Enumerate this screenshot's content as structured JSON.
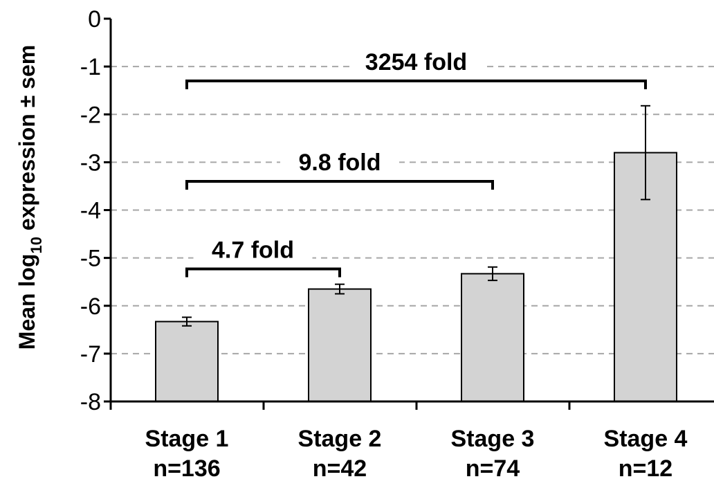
{
  "chart_data": {
    "type": "bar",
    "ylabel_main": "Mean log",
    "ylabel_sub": "10",
    "ylabel_rest": " expression ± sem",
    "ylim": [
      -8,
      0
    ],
    "yticks": [
      0,
      -1,
      -2,
      -3,
      -4,
      -5,
      -6,
      -7,
      -8
    ],
    "grid": true,
    "categories": [
      "Stage 1",
      "Stage 2",
      "Stage 3",
      "Stage 4"
    ],
    "category_n": [
      "n=136",
      "n=42",
      "n=74",
      "n=12"
    ],
    "values": [
      -6.33,
      -5.65,
      -5.33,
      -2.8
    ],
    "errors": [
      0.09,
      0.1,
      0.14,
      0.98
    ],
    "annotations": [
      {
        "label": "4.7 fold",
        "from": 0,
        "to": 1,
        "y": -5.23
      },
      {
        "label": "9.8 fold",
        "from": 0,
        "to": 2,
        "y": -3.4
      },
      {
        "label": "3254 fold",
        "from": 0,
        "to": 3,
        "y": -1.3
      }
    ],
    "colors": {
      "bar": "#d3d3d3",
      "grid": "#a6a6a6"
    }
  }
}
